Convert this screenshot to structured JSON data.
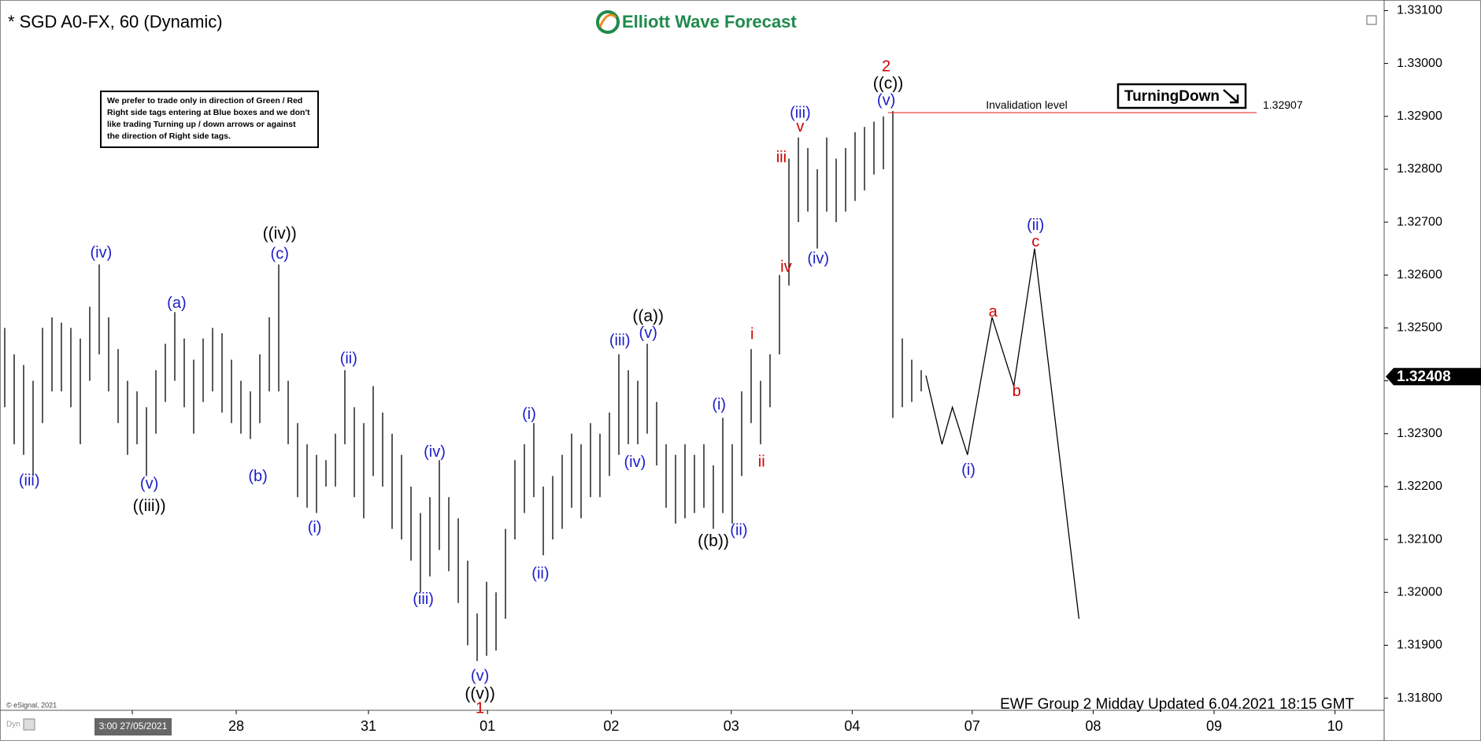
{
  "header": {
    "symbol": "* SGD A0-FX, 60 (Dynamic)",
    "logo": "Elliott Wave Forecast",
    "dyn": "Dyn",
    "copyright": "© eSignal, 2021"
  },
  "note": {
    "lines": [
      "We prefer to trade only in direction of Green / Red",
      "Right side tags entering at Blue boxes and we don't",
      "like trading Turning up / down arrows or against",
      "the direction of Right side tags."
    ]
  },
  "tag": "TurningDown",
  "footer": "EWF Group 2 Midday Updated 6.04.2021 18:15 GMT",
  "chart_data": {
    "type": "ohlc",
    "color": "#000000",
    "x": [
      0,
      1,
      2,
      3,
      4,
      5,
      6,
      7,
      8,
      9,
      10,
      11,
      12,
      13,
      14,
      15,
      16,
      17,
      18,
      19,
      20,
      21,
      22,
      23,
      24,
      25,
      26,
      27,
      28,
      29,
      30,
      31,
      32,
      33,
      34,
      35,
      36,
      37,
      38,
      39,
      40,
      41,
      42,
      43,
      44,
      45,
      46,
      47,
      48,
      49,
      50,
      51,
      52,
      53,
      54,
      55,
      56,
      57,
      58,
      59,
      60,
      61,
      62,
      63,
      64,
      65,
      66,
      67,
      68,
      69,
      70,
      71,
      72,
      73,
      74,
      75,
      76,
      77,
      78,
      79,
      80,
      81,
      82,
      83,
      84,
      85,
      86,
      87,
      88,
      89,
      90,
      91,
      92,
      93,
      94,
      95,
      96,
      97
    ],
    "high": [
      1.325,
      1.3245,
      1.3243,
      1.324,
      1.325,
      1.3252,
      1.3251,
      1.325,
      1.3248,
      1.3254,
      1.3262,
      1.3252,
      1.3246,
      1.324,
      1.3238,
      1.3235,
      1.3242,
      1.3247,
      1.3253,
      1.3248,
      1.3244,
      1.3248,
      1.325,
      1.3249,
      1.3244,
      1.324,
      1.3238,
      1.3245,
      1.3252,
      1.3262,
      1.324,
      1.3232,
      1.3228,
      1.3226,
      1.3225,
      1.323,
      1.3242,
      1.3235,
      1.3232,
      1.3239,
      1.3234,
      1.323,
      1.3226,
      1.322,
      1.3215,
      1.3218,
      1.3225,
      1.3218,
      1.3214,
      1.3206,
      1.3196,
      1.3202,
      1.32,
      1.3212,
      1.3225,
      1.3228,
      1.3232,
      1.322,
      1.3222,
      1.3226,
      1.323,
      1.3228,
      1.3232,
      1.323,
      1.3234,
      1.3245,
      1.3242,
      1.324,
      1.3247,
      1.3236,
      1.3228,
      1.3226,
      1.3228,
      1.3226,
      1.3228,
      1.3224,
      1.3233,
      1.3228,
      1.3238,
      1.3246,
      1.324,
      1.3245,
      1.326,
      1.3282,
      1.3286,
      1.3284,
      1.328,
      1.3286,
      1.3282,
      1.3284,
      1.3287,
      1.3288,
      1.3289,
      1.329,
      1.3291,
      1.3248,
      1.3244,
      1.3242
    ],
    "low": [
      1.3235,
      1.3228,
      1.3226,
      1.3222,
      1.3232,
      1.3238,
      1.3238,
      1.3235,
      1.3228,
      1.324,
      1.3245,
      1.3238,
      1.3232,
      1.3226,
      1.3228,
      1.3222,
      1.323,
      1.3236,
      1.324,
      1.3235,
      1.323,
      1.3236,
      1.3238,
      1.3234,
      1.3232,
      1.323,
      1.3229,
      1.3232,
      1.3238,
      1.3238,
      1.3228,
      1.3218,
      1.3216,
      1.3215,
      1.322,
      1.322,
      1.3228,
      1.3218,
      1.3214,
      1.3222,
      1.322,
      1.3212,
      1.321,
      1.3206,
      1.32,
      1.3203,
      1.3208,
      1.3204,
      1.3198,
      1.319,
      1.3187,
      1.3188,
      1.3189,
      1.3195,
      1.321,
      1.3215,
      1.3218,
      1.3207,
      1.321,
      1.3212,
      1.3216,
      1.3214,
      1.3218,
      1.3218,
      1.3222,
      1.3226,
      1.3228,
      1.3228,
      1.323,
      1.3224,
      1.3216,
      1.3213,
      1.3214,
      1.3215,
      1.3216,
      1.3212,
      1.3215,
      1.3213,
      1.3222,
      1.3232,
      1.3228,
      1.3235,
      1.3245,
      1.3258,
      1.327,
      1.3272,
      1.3265,
      1.3272,
      1.327,
      1.3272,
      1.3274,
      1.3276,
      1.3279,
      1.328,
      1.3233,
      1.3235,
      1.3236,
      1.3238
    ],
    "xlim": [
      -0.5,
      146
    ],
    "ylim": [
      1.31777,
      1.3312
    ],
    "yticks": [
      {
        "value": 1.318,
        "label": "1.31800"
      },
      {
        "value": 1.319,
        "label": "1.31900"
      },
      {
        "value": 1.32,
        "label": "1.32000"
      },
      {
        "value": 1.321,
        "label": "1.32100"
      },
      {
        "value": 1.322,
        "label": "1.32200"
      },
      {
        "value": 1.323,
        "label": "1.32300"
      },
      {
        "value": 1.324,
        "label": "1.32400"
      },
      {
        "value": 1.325,
        "label": "1.32500"
      },
      {
        "value": 1.326,
        "label": "1.32600"
      },
      {
        "value": 1.327,
        "label": "1.32700"
      },
      {
        "value": 1.328,
        "label": "1.32800"
      },
      {
        "value": 1.329,
        "label": "1.32900"
      },
      {
        "value": 1.33,
        "label": "1.33000"
      },
      {
        "value": 1.331,
        "label": "1.33100"
      }
    ],
    "xticks": [
      {
        "value": 13.5,
        "label": "3:00 27/05/2021"
      },
      {
        "value": 24.5,
        "label": "28"
      },
      {
        "value": 38.5,
        "label": "31"
      },
      {
        "value": 51.1,
        "label": "01"
      },
      {
        "value": 64.2,
        "label": "02"
      },
      {
        "value": 76.9,
        "label": "03"
      },
      {
        "value": 89.7,
        "label": "04"
      },
      {
        "value": 102.4,
        "label": "07"
      },
      {
        "value": 115.2,
        "label": "08"
      },
      {
        "value": 128,
        "label": "09"
      },
      {
        "value": 140.8,
        "label": "10"
      }
    ],
    "last_price": {
      "value": 1.32408,
      "label": "1.32408"
    },
    "invalidation": {
      "text": "Invalidation level",
      "value": 1.32907,
      "label": "1.32907",
      "xlim": [
        93.5,
        132.5
      ],
      "color": "#e03030"
    },
    "projection": {
      "x": [
        97.5,
        99.2,
        100.3,
        101.9,
        104.5,
        106.8,
        109,
        113.7
      ],
      "y": [
        1.3241,
        1.3228,
        1.3235,
        1.3226,
        1.3252,
        1.3239,
        1.3265,
        1.3195
      ],
      "color": "#000000"
    },
    "annotations": [
      {
        "text": "(iii)",
        "x": 2.6,
        "y": 1.3221,
        "color": "#1c1cc8"
      },
      {
        "text": "(iv)",
        "x": 10.2,
        "y": 1.32641,
        "color": "#1c1cc8"
      },
      {
        "text": "(a)",
        "x": 18.2,
        "y": 1.32546,
        "color": "#1c1cc8"
      },
      {
        "text": "(v)",
        "x": 15.3,
        "y": 1.32204,
        "color": "#1c1cc8"
      },
      {
        "text": "((iii))",
        "x": 15.3,
        "y": 1.32162,
        "color": "#000000"
      },
      {
        "text": "((iv))",
        "x": 29.1,
        "y": 1.32677,
        "color": "#000000"
      },
      {
        "text": "(c)",
        "x": 29.1,
        "y": 1.32639,
        "color": "#1c1cc8"
      },
      {
        "text": "(b)",
        "x": 26.8,
        "y": 1.32218,
        "color": "#1c1cc8"
      },
      {
        "text": "(i)",
        "x": 32.8,
        "y": 1.32121,
        "color": "#1c1cc8"
      },
      {
        "text": "(ii)",
        "x": 36.4,
        "y": 1.32441,
        "color": "#1c1cc8"
      },
      {
        "text": "(iv)",
        "x": 45.5,
        "y": 1.32264,
        "color": "#1c1cc8"
      },
      {
        "text": "(iii)",
        "x": 44.3,
        "y": 1.31986,
        "color": "#1c1cc8"
      },
      {
        "text": "(v)",
        "x": 50.3,
        "y": 1.31841,
        "color": "#1c1cc8"
      },
      {
        "text": "((v))",
        "x": 50.3,
        "y": 1.31807,
        "color": "#000000"
      },
      {
        "text": "1",
        "x": 50.3,
        "y": 1.3178,
        "color": "#d00000"
      },
      {
        "text": "(i)",
        "x": 55.5,
        "y": 1.32336,
        "color": "#1c1cc8"
      },
      {
        "text": "(ii)",
        "x": 56.7,
        "y": 1.32034,
        "color": "#1c1cc8"
      },
      {
        "text": "(iii)",
        "x": 65.1,
        "y": 1.32475,
        "color": "#1c1cc8"
      },
      {
        "text": "((a))",
        "x": 68.1,
        "y": 1.32521,
        "color": "#000000"
      },
      {
        "text": "(v)",
        "x": 68.1,
        "y": 1.32489,
        "color": "#1c1cc8"
      },
      {
        "text": "(iv)",
        "x": 66.7,
        "y": 1.32245,
        "color": "#1c1cc8"
      },
      {
        "text": "((b))",
        "x": 75,
        "y": 1.32096,
        "color": "#000000"
      },
      {
        "text": "(ii)",
        "x": 77.7,
        "y": 1.32116,
        "color": "#1c1cc8"
      },
      {
        "text": "(i)",
        "x": 75.6,
        "y": 1.32354,
        "color": "#1c1cc8"
      },
      {
        "text": "i",
        "x": 79.1,
        "y": 1.32487,
        "color": "#d00000"
      },
      {
        "text": "ii",
        "x": 80.1,
        "y": 1.32246,
        "color": "#d00000"
      },
      {
        "text": "iii",
        "x": 82.2,
        "y": 1.32821,
        "color": "#d00000"
      },
      {
        "text": "iv",
        "x": 82.7,
        "y": 1.32614,
        "color": "#d00000"
      },
      {
        "text": "(iii)",
        "x": 84.2,
        "y": 1.32905,
        "color": "#1c1cc8"
      },
      {
        "text": "v",
        "x": 84.2,
        "y": 1.32879,
        "color": "#d00000"
      },
      {
        "text": "(iv)",
        "x": 86.1,
        "y": 1.3263,
        "color": "#1c1cc8"
      },
      {
        "text": "2",
        "x": 93.3,
        "y": 1.32993,
        "color": "#d00000"
      },
      {
        "text": "((c))",
        "x": 93.5,
        "y": 1.32961,
        "color": "#000000"
      },
      {
        "text": "(v)",
        "x": 93.3,
        "y": 1.32929,
        "color": "#1c1cc8"
      },
      {
        "text": "(i)",
        "x": 102,
        "y": 1.3223,
        "color": "#1c1cc8"
      },
      {
        "text": "a",
        "x": 104.6,
        "y": 1.32529,
        "color": "#d00000"
      },
      {
        "text": "b",
        "x": 107.1,
        "y": 1.32379,
        "color": "#d00000"
      },
      {
        "text": "(ii)",
        "x": 109.1,
        "y": 1.32693,
        "color": "#1c1cc8"
      },
      {
        "text": "c",
        "x": 109.1,
        "y": 1.32662,
        "color": "#d00000"
      }
    ]
  }
}
